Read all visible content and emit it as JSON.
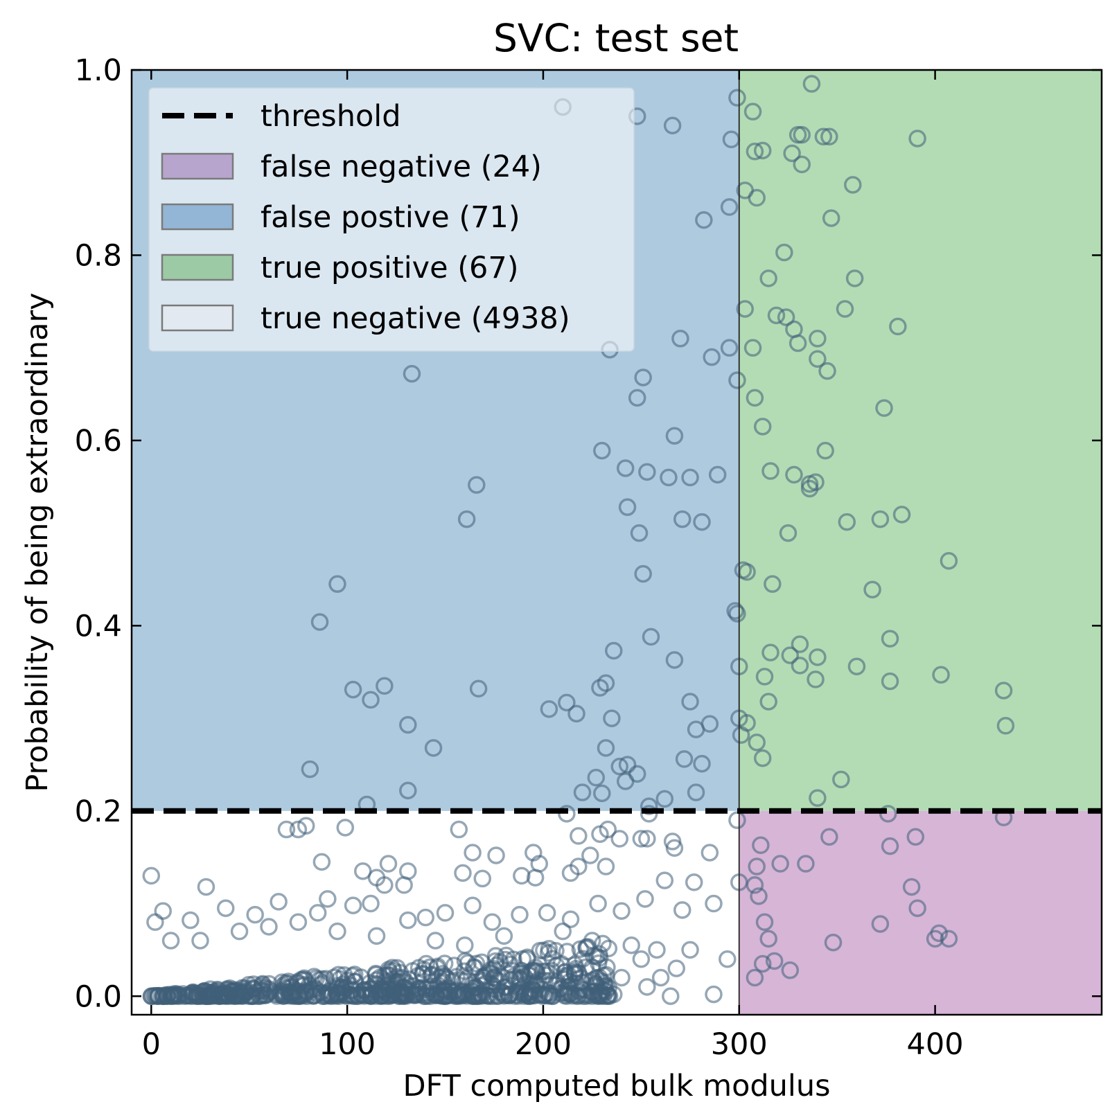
{
  "chart_data": {
    "type": "scatter",
    "title": "SVC: test set",
    "xlabel": "DFT computed bulk modulus",
    "ylabel": "Probability of being extraordinary",
    "xlim": [
      -10,
      485
    ],
    "ylim": [
      -0.02,
      1.0
    ],
    "x_ticks": [
      "0",
      "100",
      "200",
      "300",
      "400"
    ],
    "y_ticks": [
      "0.0",
      "0.2",
      "0.4",
      "0.6",
      "0.8",
      "1.0"
    ],
    "threshold_x": 300,
    "threshold_y": 0.2,
    "colors": {
      "false_positive": "#aecadf",
      "true_positive": "#b3dcb4",
      "false_negative": "#d6b5d7",
      "marker": "#3f5f78",
      "threshold": "#000000",
      "legend_fp_patch": "#93b5d6",
      "legend_tp_patch": "#9ccaa4",
      "legend_fn_patch": "#b7a5cd",
      "legend_tn_patch": "#e3e9f1"
    },
    "legend": [
      {
        "label": "threshold",
        "kind": "dashed-line"
      },
      {
        "label": "false negative (24)",
        "kind": "patch",
        "region": "false_negative"
      },
      {
        "label": "false postive (71)",
        "kind": "patch",
        "region": "false_positive"
      },
      {
        "label": "true positive (67)",
        "kind": "patch",
        "region": "true_positive"
      },
      {
        "label": "true negative (4938)",
        "kind": "patch",
        "region": "true_negative"
      }
    ],
    "points": [
      [
        210,
        0.96
      ],
      [
        248,
        0.95
      ],
      [
        266,
        0.94
      ],
      [
        299,
        0.97
      ],
      [
        307,
        0.955
      ],
      [
        337,
        0.985
      ],
      [
        296,
        0.925
      ],
      [
        312,
        0.913
      ],
      [
        308,
        0.912
      ],
      [
        327,
        0.91
      ],
      [
        332,
        0.93
      ],
      [
        330,
        0.93
      ],
      [
        343,
        0.928
      ],
      [
        346,
        0.928
      ],
      [
        391,
        0.926
      ],
      [
        332,
        0.898
      ],
      [
        358,
        0.876
      ],
      [
        303,
        0.87
      ],
      [
        309,
        0.862
      ],
      [
        295,
        0.852
      ],
      [
        282,
        0.838
      ],
      [
        347,
        0.84
      ],
      [
        323,
        0.803
      ],
      [
        315,
        0.775
      ],
      [
        359,
        0.775
      ],
      [
        354,
        0.742
      ],
      [
        303,
        0.742
      ],
      [
        319,
        0.735
      ],
      [
        324,
        0.733
      ],
      [
        328,
        0.72
      ],
      [
        381,
        0.723
      ],
      [
        270,
        0.71
      ],
      [
        340,
        0.71
      ],
      [
        295,
        0.7
      ],
      [
        307,
        0.7
      ],
      [
        234,
        0.698
      ],
      [
        330,
        0.705
      ],
      [
        286,
        0.69
      ],
      [
        340,
        0.688
      ],
      [
        345,
        0.675
      ],
      [
        133,
        0.672
      ],
      [
        251,
        0.668
      ],
      [
        299,
        0.665
      ],
      [
        248,
        0.646
      ],
      [
        308,
        0.646
      ],
      [
        374,
        0.635
      ],
      [
        312,
        0.615
      ],
      [
        267,
        0.605
      ],
      [
        230,
        0.589
      ],
      [
        344,
        0.589
      ],
      [
        242,
        0.57
      ],
      [
        253,
        0.566
      ],
      [
        264,
        0.56
      ],
      [
        275,
        0.56
      ],
      [
        289,
        0.563
      ],
      [
        316,
        0.567
      ],
      [
        328,
        0.563
      ],
      [
        336,
        0.553
      ],
      [
        336,
        0.548
      ],
      [
        339,
        0.555
      ],
      [
        166,
        0.552
      ],
      [
        161,
        0.515
      ],
      [
        243,
        0.528
      ],
      [
        271,
        0.515
      ],
      [
        281,
        0.512
      ],
      [
        355,
        0.512
      ],
      [
        372,
        0.515
      ],
      [
        383,
        0.52
      ],
      [
        249,
        0.5
      ],
      [
        325,
        0.5
      ],
      [
        407,
        0.47
      ],
      [
        302,
        0.46
      ],
      [
        304,
        0.458
      ],
      [
        251,
        0.456
      ],
      [
        95,
        0.445
      ],
      [
        317,
        0.445
      ],
      [
        368,
        0.439
      ],
      [
        298,
        0.416
      ],
      [
        299,
        0.413
      ],
      [
        86,
        0.404
      ],
      [
        255,
        0.388
      ],
      [
        377,
        0.386
      ],
      [
        236,
        0.373
      ],
      [
        316,
        0.371
      ],
      [
        331,
        0.38
      ],
      [
        326,
        0.368
      ],
      [
        340,
        0.366
      ],
      [
        267,
        0.363
      ],
      [
        360,
        0.356
      ],
      [
        300,
        0.356
      ],
      [
        331,
        0.357
      ],
      [
        313,
        0.345
      ],
      [
        339,
        0.342
      ],
      [
        377,
        0.34
      ],
      [
        403,
        0.347
      ],
      [
        232,
        0.338
      ],
      [
        229,
        0.333
      ],
      [
        103,
        0.331
      ],
      [
        119,
        0.335
      ],
      [
        167,
        0.332
      ],
      [
        212,
        0.317
      ],
      [
        112,
        0.32
      ],
      [
        275,
        0.318
      ],
      [
        315,
        0.318
      ],
      [
        435,
        0.33
      ],
      [
        203,
        0.31
      ],
      [
        217,
        0.305
      ],
      [
        235,
        0.3
      ],
      [
        300,
        0.3
      ],
      [
        304,
        0.295
      ],
      [
        285,
        0.294
      ],
      [
        131,
        0.293
      ],
      [
        278,
        0.288
      ],
      [
        436,
        0.292
      ],
      [
        301,
        0.282
      ],
      [
        309,
        0.274
      ],
      [
        232,
        0.268
      ],
      [
        144,
        0.268
      ],
      [
        312,
        0.257
      ],
      [
        272,
        0.256
      ],
      [
        281,
        0.251
      ],
      [
        239,
        0.248
      ],
      [
        243,
        0.25
      ],
      [
        248,
        0.24
      ],
      [
        242,
        0.232
      ],
      [
        227,
        0.236
      ],
      [
        352,
        0.234
      ],
      [
        81,
        0.245
      ],
      [
        220,
        0.22
      ],
      [
        230,
        0.219
      ],
      [
        262,
        0.213
      ],
      [
        278,
        0.22
      ],
      [
        340,
        0.214
      ],
      [
        110,
        0.207
      ],
      [
        131,
        0.222
      ],
      [
        254,
        0.205
      ],
      [
        254,
        0.197
      ],
      [
        376,
        0.197
      ],
      [
        212,
        0.197
      ],
      [
        435,
        0.193
      ],
      [
        299,
        0.19
      ],
      [
        75,
        0.18
      ],
      [
        69,
        0.18
      ],
      [
        79,
        0.184
      ],
      [
        99,
        0.182
      ],
      [
        157,
        0.18
      ],
      [
        233,
        0.18
      ],
      [
        239,
        0.17
      ],
      [
        253,
        0.17
      ],
      [
        266,
        0.167
      ],
      [
        229,
        0.175
      ],
      [
        218,
        0.173
      ],
      [
        311,
        0.163
      ],
      [
        346,
        0.172
      ],
      [
        390,
        0.172
      ],
      [
        377,
        0.162
      ],
      [
        267,
        0.16
      ],
      [
        285,
        0.155
      ],
      [
        250,
        0.17
      ],
      [
        195,
        0.155
      ],
      [
        164,
        0.155
      ],
      [
        176,
        0.152
      ],
      [
        224,
        0.152
      ],
      [
        218,
        0.14
      ],
      [
        198,
        0.143
      ],
      [
        87,
        0.145
      ],
      [
        121,
        0.143
      ],
      [
        131,
        0.135
      ],
      [
        108,
        0.135
      ],
      [
        115,
        0.128
      ],
      [
        119,
        0.12
      ],
      [
        129,
        0.12
      ],
      [
        0,
        0.13
      ],
      [
        28,
        0.118
      ],
      [
        159,
        0.133
      ],
      [
        169,
        0.127
      ],
      [
        189,
        0.13
      ],
      [
        196,
        0.128
      ],
      [
        214,
        0.133
      ],
      [
        232,
        0.14
      ],
      [
        262,
        0.125
      ],
      [
        277,
        0.123
      ],
      [
        309,
        0.14
      ],
      [
        321,
        0.143
      ],
      [
        334,
        0.143
      ],
      [
        300,
        0.123
      ],
      [
        308,
        0.12
      ],
      [
        388,
        0.118
      ],
      [
        310,
        0.108
      ],
      [
        313,
        0.08
      ],
      [
        315,
        0.062
      ],
      [
        372,
        0.078
      ],
      [
        391,
        0.095
      ],
      [
        348,
        0.058
      ],
      [
        402,
        0.068
      ],
      [
        407,
        0.062
      ],
      [
        400,
        0.062
      ],
      [
        312,
        0.035
      ],
      [
        308,
        0.02
      ],
      [
        318,
        0.038
      ],
      [
        326,
        0.028
      ],
      [
        294,
        0.04
      ],
      [
        287,
        0.1
      ],
      [
        252,
        0.105
      ],
      [
        271,
        0.093
      ],
      [
        240,
        0.092
      ],
      [
        228,
        0.1
      ],
      [
        214,
        0.083
      ],
      [
        202,
        0.09
      ],
      [
        188,
        0.088
      ],
      [
        174,
        0.08
      ],
      [
        164,
        0.098
      ],
      [
        150,
        0.09
      ],
      [
        140,
        0.085
      ],
      [
        131,
        0.082
      ],
      [
        112,
        0.1
      ],
      [
        103,
        0.098
      ],
      [
        90,
        0.105
      ],
      [
        85,
        0.09
      ],
      [
        65,
        0.102
      ],
      [
        53,
        0.088
      ],
      [
        38,
        0.095
      ],
      [
        20,
        0.082
      ],
      [
        6,
        0.092
      ],
      [
        2,
        0.08
      ],
      [
        10,
        0.06
      ],
      [
        25,
        0.06
      ],
      [
        45,
        0.07
      ],
      [
        60,
        0.075
      ],
      [
        75,
        0.08
      ],
      [
        95,
        0.07
      ],
      [
        115,
        0.065
      ],
      [
        145,
        0.06
      ],
      [
        160,
        0.055
      ],
      [
        180,
        0.065
      ],
      [
        210,
        0.07
      ],
      [
        225,
        0.06
      ],
      [
        245,
        0.055
      ],
      [
        258,
        0.05
      ],
      [
        275,
        0.05
      ],
      [
        268,
        0.03
      ],
      [
        253,
        0.01
      ],
      [
        265,
        0.0
      ],
      [
        287,
        0.002
      ],
      [
        250,
        0.04
      ],
      [
        260,
        0.02
      ],
      [
        240,
        0.02
      ],
      [
        236,
        0.002
      ]
    ],
    "dense_band": {
      "x_max": 235,
      "y_at_0": 0.0,
      "y_at_max": 0.06
    }
  }
}
